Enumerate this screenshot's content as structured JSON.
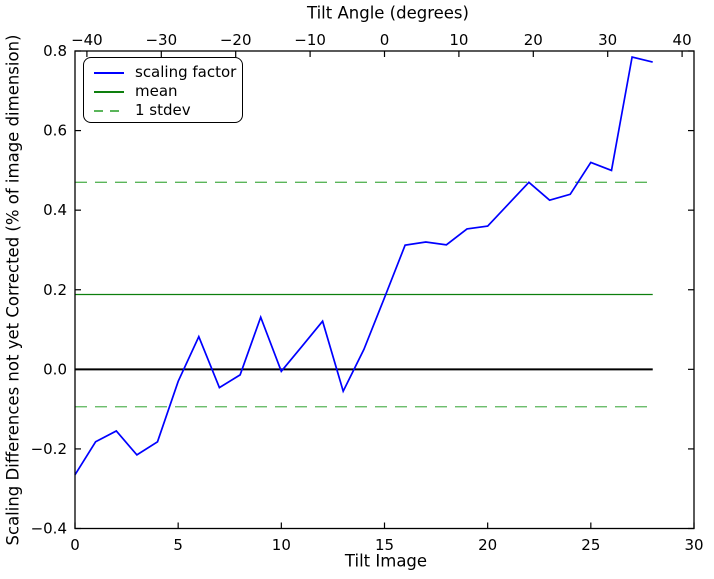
{
  "figure": {
    "background": "#ffffff"
  },
  "titles": {
    "top_axis_label": "Tilt Angle (degrees)",
    "xlabel": "Tilt Image",
    "ylabel": "Scaling Differences not yet Corrected (% of image dimension)"
  },
  "legend": {
    "items": [
      {
        "label": "scaling factor",
        "color": "#0000ff",
        "style": "solid"
      },
      {
        "label": "mean",
        "color": "#0e7f0e",
        "style": "solid"
      },
      {
        "label": "1 stdev",
        "color": "#5ab55a",
        "style": "dashed"
      }
    ]
  },
  "chart_data": {
    "type": "line",
    "title": "Tilt Angle (degrees)",
    "xlabel": "Tilt Image",
    "ylabel": "Scaling Differences not yet Corrected (% of image dimension)",
    "xlim": [
      0,
      30
    ],
    "ylim": [
      -0.4,
      0.8
    ],
    "grid": false,
    "legend_position": "upper left",
    "x": [
      0,
      1,
      2,
      3,
      4,
      5,
      6,
      7,
      8,
      9,
      10,
      11,
      12,
      13,
      14,
      15,
      16,
      17,
      18,
      19,
      20,
      21,
      22,
      23,
      24,
      25,
      26,
      27,
      28
    ],
    "series": [
      {
        "name": "scaling factor",
        "color": "#0000ff",
        "style": "solid",
        "width": 1.7,
        "values": [
          -0.265,
          -0.182,
          -0.155,
          -0.215,
          -0.182,
          -0.03,
          0.082,
          -0.046,
          -0.014,
          0.131,
          -0.005,
          0.058,
          0.121,
          -0.055,
          0.05,
          0.18,
          0.312,
          0.32,
          0.313,
          0.353,
          0.36,
          0.415,
          0.47,
          0.425,
          0.44,
          0.52,
          0.5,
          0.785,
          0.772
        ]
      }
    ],
    "stats": {
      "mean": 0.188,
      "stdev": 0.282
    },
    "hlines": [
      {
        "name": "zero",
        "y": 0,
        "color": "#000000",
        "style": "solid",
        "width": 2,
        "span": [
          0,
          28
        ]
      },
      {
        "name": "mean",
        "y": 0.188,
        "color": "#0e7f0e",
        "style": "solid",
        "width": 1.3,
        "span": [
          0,
          28
        ]
      },
      {
        "name": "stdev-upper",
        "y": 0.47,
        "color": "#5ab55a",
        "style": "dashed",
        "width": 1.3,
        "span": [
          0,
          28
        ]
      },
      {
        "name": "stdev-lower",
        "y": -0.094,
        "color": "#5ab55a",
        "style": "dashed",
        "width": 1.3,
        "span": [
          0,
          28
        ]
      }
    ],
    "x_ticks": {
      "values": [
        0,
        5,
        10,
        15,
        20,
        25,
        30
      ],
      "labels": [
        "0",
        "5",
        "10",
        "15",
        "20",
        "25",
        "30"
      ]
    },
    "y_ticks": {
      "values": [
        0.8,
        0.6,
        0.4,
        0.2,
        0,
        -0.2,
        -0.4
      ],
      "labels": [
        "0.8",
        "0.6",
        "0.4",
        "0.2",
        "0.0",
        "−0.2",
        "−0.4"
      ]
    },
    "top_axis": {
      "label": "Tilt Angle (degrees)",
      "lim": [
        -41.6,
        41.6
      ],
      "ticks": [
        -40,
        -30,
        -20,
        -10,
        0,
        10,
        20,
        30,
        40
      ],
      "labels": [
        "−40",
        "−30",
        "−20",
        "−10",
        "0",
        "10",
        "20",
        "30",
        "40"
      ]
    },
    "legend_entries": [
      "scaling factor",
      "mean",
      "1 stdev"
    ]
  }
}
